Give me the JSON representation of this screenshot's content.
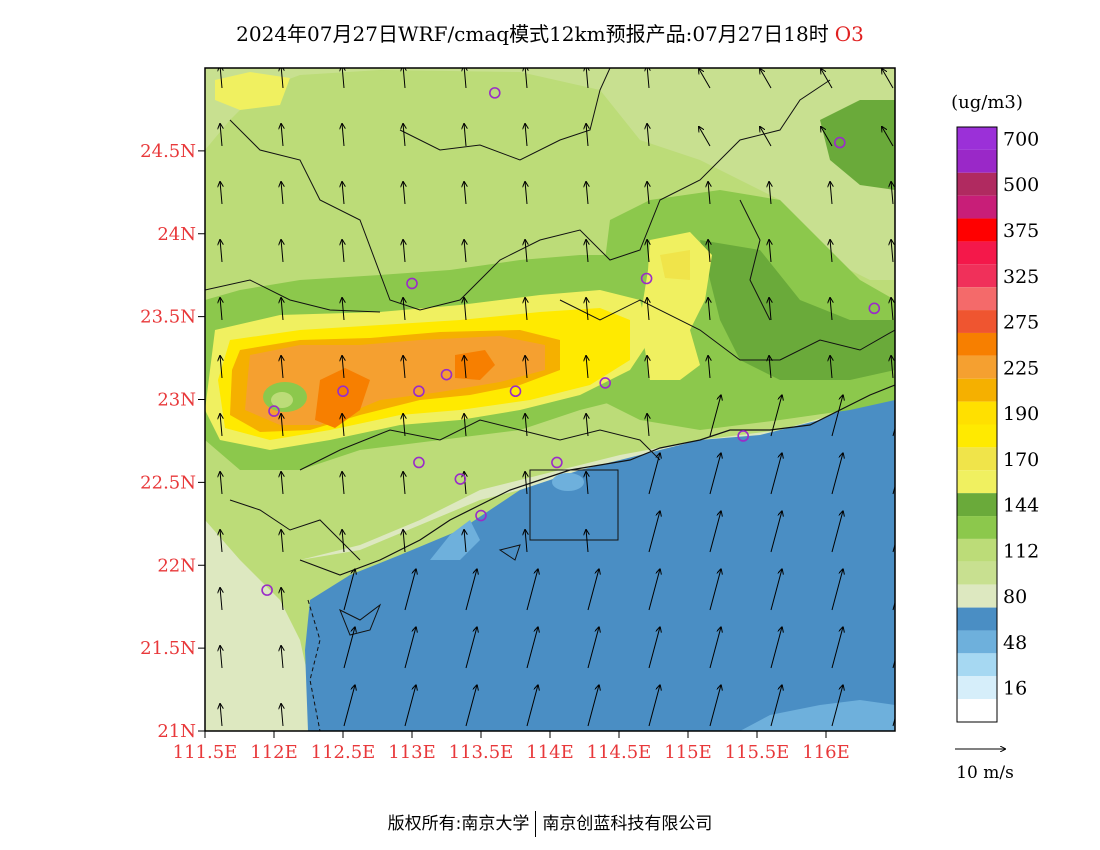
{
  "header": {
    "title": "2024年07月27日WRF/cmaq模式12km预报产品:07月27日18时",
    "variable": "O3"
  },
  "map": {
    "lon_range": [
      111.5,
      116.5
    ],
    "lat_range": [
      21.0,
      25.0
    ],
    "lat_ticks": [
      {
        "value": 24.5,
        "label": "24.5N"
      },
      {
        "value": 24.0,
        "label": "24N"
      },
      {
        "value": 23.5,
        "label": "23.5N"
      },
      {
        "value": 23.0,
        "label": "23N"
      },
      {
        "value": 22.5,
        "label": "22.5N"
      },
      {
        "value": 22.0,
        "label": "22N"
      },
      {
        "value": 21.5,
        "label": "21.5N"
      },
      {
        "value": 21.0,
        "label": "21N"
      }
    ],
    "lon_ticks": [
      {
        "value": 111.5,
        "label": "111.5E"
      },
      {
        "value": 112.0,
        "label": "112E"
      },
      {
        "value": 112.5,
        "label": "112.5E"
      },
      {
        "value": 113.0,
        "label": "113E"
      },
      {
        "value": 113.5,
        "label": "113.5E"
      },
      {
        "value": 114.0,
        "label": "114E"
      },
      {
        "value": 114.5,
        "label": "114.5E"
      },
      {
        "value": 115.0,
        "label": "115E"
      },
      {
        "value": 115.5,
        "label": "115.5E"
      },
      {
        "value": 116.0,
        "label": "116E"
      }
    ],
    "stations": [
      {
        "lon": 113.6,
        "lat": 24.85
      },
      {
        "lon": 116.1,
        "lat": 24.55
      },
      {
        "lon": 113.0,
        "lat": 23.7
      },
      {
        "lon": 114.7,
        "lat": 23.73
      },
      {
        "lon": 116.35,
        "lat": 23.55
      },
      {
        "lon": 112.5,
        "lat": 23.05
      },
      {
        "lon": 113.05,
        "lat": 23.05
      },
      {
        "lon": 113.25,
        "lat": 23.15
      },
      {
        "lon": 113.75,
        "lat": 23.05
      },
      {
        "lon": 114.4,
        "lat": 23.1
      },
      {
        "lon": 112.0,
        "lat": 22.93
      },
      {
        "lon": 115.4,
        "lat": 22.78
      },
      {
        "lon": 113.05,
        "lat": 22.62
      },
      {
        "lon": 114.05,
        "lat": 22.62
      },
      {
        "lon": 113.35,
        "lat": 22.52
      },
      {
        "lon": 113.5,
        "lat": 22.3
      },
      {
        "lon": 111.95,
        "lat": 21.85
      }
    ],
    "station_color": "#9a2cc8"
  },
  "colorbar": {
    "unit": "(ug/m3)",
    "levels": [
      {
        "label": "700",
        "color": "#9b30d8"
      },
      {
        "label": "",
        "color": "#9a28c8"
      },
      {
        "label": "500",
        "color": "#b02a60"
      },
      {
        "label": "",
        "color": "#c81e78"
      },
      {
        "label": "375",
        "color": "#ff0000"
      },
      {
        "label": "",
        "color": "#f4184a"
      },
      {
        "label": "325",
        "color": "#f0305a"
      },
      {
        "label": "",
        "color": "#f46a6a"
      },
      {
        "label": "275",
        "color": "#ef5530"
      },
      {
        "label": "",
        "color": "#f77f00"
      },
      {
        "label": "225",
        "color": "#f5a030"
      },
      {
        "label": "",
        "color": "#f5b000"
      },
      {
        "label": "190",
        "color": "#ffe000"
      },
      {
        "label": "",
        "color": "#ffea00"
      },
      {
        "label": "170",
        "color": "#f0e44a"
      },
      {
        "label": "",
        "color": "#f0f060"
      },
      {
        "label": "144",
        "color": "#6aaa3a"
      },
      {
        "label": "",
        "color": "#8cc84c"
      },
      {
        "label": "112",
        "color": "#bcdc78"
      },
      {
        "label": "",
        "color": "#c8e090"
      },
      {
        "label": "80",
        "color": "#dde8c0"
      },
      {
        "label": "",
        "color": "#4a8ec4"
      },
      {
        "label": "48",
        "color": "#6eb0dc"
      },
      {
        "label": "",
        "color": "#a6d8f2"
      },
      {
        "label": "16",
        "color": "#d6eefa"
      },
      {
        "label": "",
        "color": "#ffffff"
      }
    ]
  },
  "wind_reference": {
    "label": "10 m/s"
  },
  "footer": {
    "copyright": "版权所有:南京大学",
    "company": "南京创蓝科技有限公司"
  }
}
